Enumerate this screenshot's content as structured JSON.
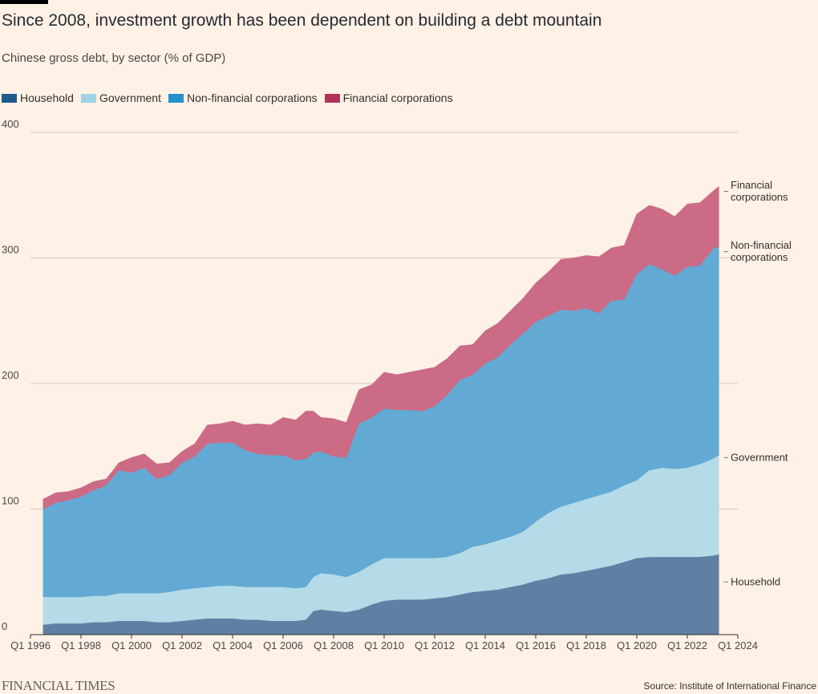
{
  "header": {
    "title": "Since 2008, investment growth has been dependent on building a debt mountain",
    "subtitle": "Chinese gross debt, by sector (% of GDP)"
  },
  "footer": {
    "brand": "FINANCIAL TIMES",
    "source": "Source: Institute of International Finance"
  },
  "chart_data": {
    "type": "area",
    "stacked": true,
    "title": "Since 2008, investment growth has been dependent on building a debt mountain",
    "subtitle": "Chinese gross debt, by sector (% of GDP)",
    "xlim": [
      1996.0,
      2024.0
    ],
    "ylim": [
      0,
      400
    ],
    "y_ticks": [
      0,
      100,
      200,
      300,
      400
    ],
    "x_ticks": [
      {
        "value": 1996,
        "label": "Q1 1996"
      },
      {
        "value": 1998,
        "label": "Q1 1998"
      },
      {
        "value": 2000,
        "label": "Q1 2000"
      },
      {
        "value": 2002,
        "label": "Q1 2002"
      },
      {
        "value": 2004,
        "label": "Q1 2004"
      },
      {
        "value": 2006,
        "label": "Q1 2006"
      },
      {
        "value": 2008,
        "label": "Q1 2008"
      },
      {
        "value": 2010,
        "label": "Q1 2010"
      },
      {
        "value": 2012,
        "label": "Q1 2012"
      },
      {
        "value": 2014,
        "label": "Q1 2014"
      },
      {
        "value": 2016,
        "label": "Q1 2016"
      },
      {
        "value": 2018,
        "label": "Q1 2018"
      },
      {
        "value": 2020,
        "label": "Q1 2020"
      },
      {
        "value": 2022,
        "label": "Q1 2022"
      },
      {
        "value": 2024,
        "label": "Q1 2024"
      }
    ],
    "grid": true,
    "legend_position": "top-left",
    "x": [
      1996.5,
      1997.0,
      1997.5,
      1998.0,
      1998.5,
      1999.0,
      1999.5,
      2000.0,
      2000.5,
      2001.0,
      2001.5,
      2002.0,
      2002.5,
      2003.0,
      2003.5,
      2004.0,
      2004.5,
      2005.0,
      2005.5,
      2006.0,
      2006.5,
      2006.9,
      2007.2,
      2007.5,
      2008.0,
      2008.5,
      2009.0,
      2009.5,
      2010.0,
      2010.5,
      2011.0,
      2011.5,
      2012.0,
      2012.5,
      2013.0,
      2013.5,
      2014.0,
      2014.5,
      2015.0,
      2015.5,
      2016.0,
      2016.5,
      2017.0,
      2017.5,
      2018.0,
      2018.5,
      2019.0,
      2019.5,
      2020.0,
      2020.5,
      2021.0,
      2021.5,
      2022.0,
      2022.5,
      2023.0,
      2023.25
    ],
    "series": [
      {
        "name": "Household",
        "color": "#5f7fa3",
        "values": [
          8,
          9,
          9,
          9,
          10,
          10,
          11,
          11,
          11,
          10,
          10,
          11,
          12,
          13,
          13,
          13,
          12,
          12,
          11,
          11,
          11,
          12,
          19,
          20,
          19,
          18,
          20,
          24,
          27,
          28,
          28,
          28,
          29,
          30,
          32,
          34,
          35,
          36,
          38,
          40,
          43,
          45,
          48,
          49,
          51,
          53,
          55,
          58,
          61,
          62,
          62,
          62,
          62,
          62,
          63,
          64
        ]
      },
      {
        "name": "Government",
        "color": "#b4dbe7",
        "values": [
          22,
          21,
          21,
          21,
          21,
          21,
          22,
          22,
          22,
          23,
          24,
          25,
          25,
          25,
          26,
          26,
          26,
          26,
          27,
          27,
          26,
          26,
          27,
          29,
          29,
          28,
          30,
          32,
          34,
          33,
          33,
          33,
          32,
          32,
          33,
          36,
          37,
          39,
          40,
          42,
          47,
          52,
          54,
          56,
          57,
          58,
          59,
          61,
          62,
          69,
          71,
          70,
          71,
          74,
          77,
          79
        ]
      },
      {
        "name": "Non-financial corporations",
        "color": "#62aad3",
        "values": [
          70,
          75,
          77,
          80,
          84,
          88,
          98,
          96,
          100,
          91,
          93,
          101,
          105,
          114,
          114,
          114,
          109,
          106,
          105,
          105,
          102,
          102,
          99,
          97,
          94,
          95,
          118,
          117,
          119,
          118,
          118,
          117,
          121,
          129,
          138,
          137,
          144,
          146,
          153,
          158,
          159,
          157,
          157,
          153,
          152,
          145,
          152,
          148,
          164,
          164,
          158,
          154,
          160,
          158,
          167,
          166
        ]
      },
      {
        "name": "Financial corporations",
        "color": "#cb6b86",
        "values": [
          8,
          8,
          7,
          7,
          7,
          5,
          6,
          12,
          11,
          12,
          10,
          9,
          10,
          15,
          15,
          17,
          20,
          24,
          24,
          30,
          32,
          38,
          33,
          27,
          30,
          28,
          27,
          26,
          29,
          28,
          30,
          33,
          31,
          29,
          27,
          24,
          26,
          27,
          27,
          28,
          31,
          35,
          40,
          42,
          42,
          45,
          42,
          43,
          48,
          47,
          48,
          47,
          50,
          50,
          46,
          48
        ]
      }
    ],
    "end_labels": [
      [
        "Household"
      ],
      [
        "Government"
      ],
      [
        "Non-financial",
        "corporations"
      ],
      [
        "Financial",
        "corporations"
      ]
    ]
  }
}
